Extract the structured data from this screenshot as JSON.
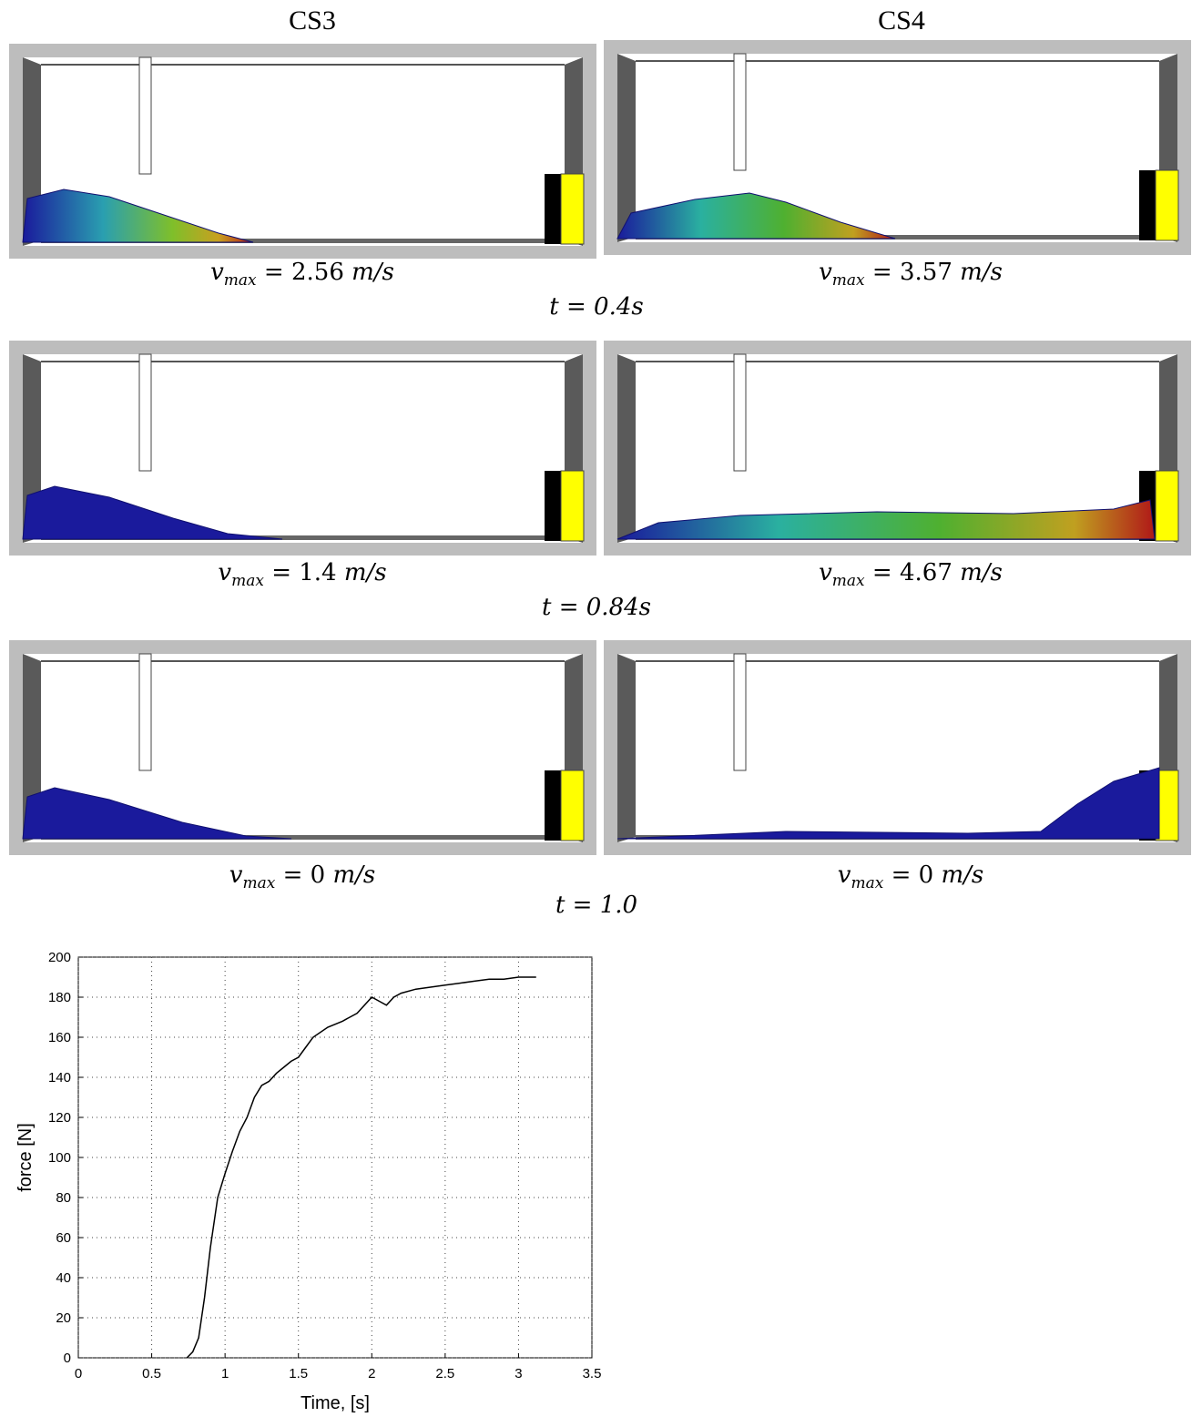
{
  "columns": [
    "CS3",
    "CS4"
  ],
  "rows": [
    {
      "panels": [
        {
          "symbol": "v",
          "subscript": "max",
          "equals": "= 2.56",
          "unit": "m/s"
        },
        {
          "symbol": "v",
          "subscript": "max",
          "equals": "= 3.57",
          "unit": "m/s"
        }
      ],
      "time": "t = 0.4s"
    },
    {
      "panels": [
        {
          "symbol": "v",
          "subscript": "max",
          "equals": "= 1.4",
          "unit": "m/s"
        },
        {
          "symbol": "v",
          "subscript": "max",
          "equals": "= 4.67",
          "unit": "m/s"
        }
      ],
      "time": "t = 0.84s"
    },
    {
      "panels": [
        {
          "symbol": "v",
          "subscript": "max",
          "equals": "= 0",
          "unit": "m/s"
        },
        {
          "symbol": "v",
          "subscript": "max",
          "equals": "= 0",
          "unit": "m/s"
        }
      ],
      "time": "t = 1.0"
    }
  ],
  "chart_data": {
    "type": "line",
    "xlabel": "Time, [s]",
    "ylabel": "force [N]",
    "x": [
      0.74,
      0.78,
      0.82,
      0.86,
      0.9,
      0.95,
      1.0,
      1.05,
      1.1,
      1.15,
      1.2,
      1.25,
      1.3,
      1.35,
      1.4,
      1.45,
      1.5,
      1.55,
      1.6,
      1.7,
      1.8,
      1.9,
      2.0,
      2.05,
      2.1,
      2.15,
      2.2,
      2.3,
      2.4,
      2.5,
      2.6,
      2.7,
      2.8,
      2.9,
      3.0,
      3.12
    ],
    "values": [
      0,
      3,
      10,
      30,
      55,
      80,
      92,
      103,
      113,
      120,
      130,
      136,
      138,
      142,
      145,
      148,
      150,
      155,
      160,
      165,
      168,
      172,
      180,
      178,
      176,
      180,
      182,
      184,
      185,
      186,
      187,
      188,
      189,
      189,
      190,
      190
    ],
    "color": "#000000",
    "xlim": [
      0,
      3.5
    ],
    "ylim": [
      0,
      200
    ],
    "xticks": [
      0,
      0.5,
      1,
      1.5,
      2,
      2.5,
      3,
      3.5
    ],
    "yticks": [
      0,
      20,
      40,
      60,
      80,
      100,
      120,
      140,
      160,
      180,
      200
    ],
    "grid": true
  }
}
